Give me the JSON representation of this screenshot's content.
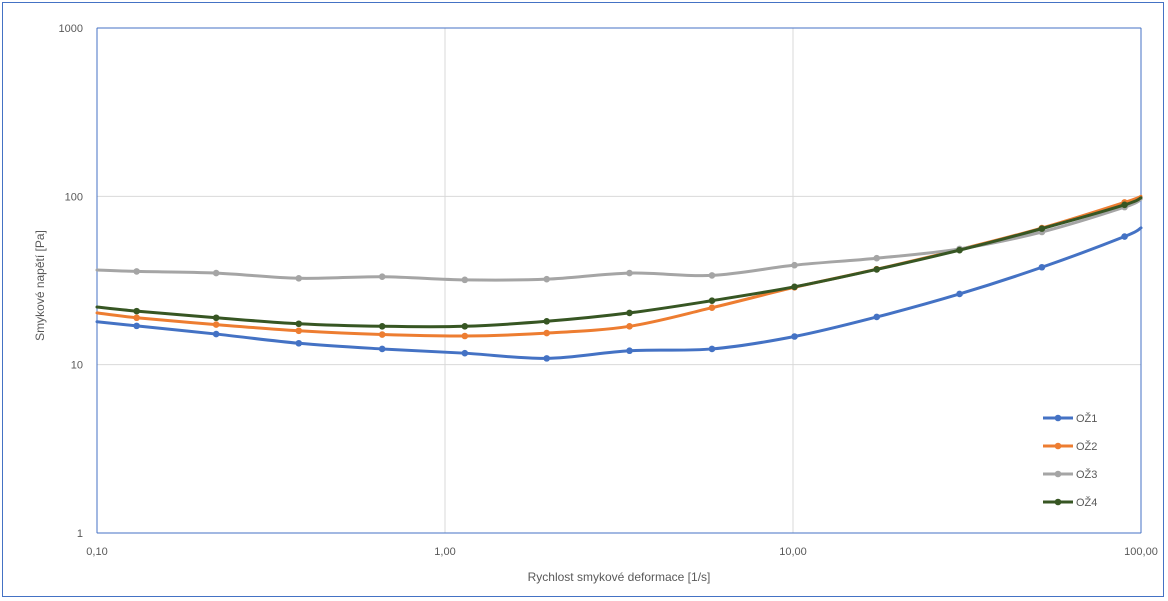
{
  "chart_data": {
    "type": "line",
    "title": "",
    "xlabel": "Rychlost smykové deformace [1/s]",
    "ylabel": "Smykové napětí [Pa]",
    "xscale": "log",
    "yscale": "log",
    "xlim": [
      0.1,
      100
    ],
    "ylim": [
      1,
      1000
    ],
    "xticks": [
      {
        "value": 0.1,
        "label": "0,10"
      },
      {
        "value": 1,
        "label": "1,00"
      },
      {
        "value": 10,
        "label": "10,00"
      },
      {
        "value": 100,
        "label": "100,00"
      }
    ],
    "yticks": [
      {
        "value": 1,
        "label": "1"
      },
      {
        "value": 10,
        "label": "10"
      },
      {
        "value": 100,
        "label": "100"
      },
      {
        "value": 1000,
        "label": "1000"
      }
    ],
    "grid": true,
    "legend": "right",
    "x": [
      0.1,
      0.13,
      0.22,
      0.38,
      0.66,
      1.14,
      1.96,
      3.39,
      5.85,
      10.1,
      17.4,
      30.1,
      51.9,
      89.7,
      100
    ],
    "series": [
      {
        "name": "OŽ1",
        "color": "#4472c4",
        "values": [
          18,
          17,
          15.2,
          13.4,
          12.4,
          11.7,
          10.9,
          12.1,
          12.4,
          14.7,
          19.2,
          26.3,
          37.9,
          57.7,
          65
        ]
      },
      {
        "name": "OŽ2",
        "color": "#ed7d31",
        "values": [
          20.3,
          19,
          17.3,
          15.9,
          15.1,
          14.8,
          15.4,
          16.9,
          21.8,
          28.8,
          36.9,
          48.3,
          64.8,
          92,
          100
        ]
      },
      {
        "name": "OŽ3",
        "color": "#a5a5a5",
        "values": [
          36.5,
          35.8,
          35,
          32.6,
          33.3,
          31.9,
          32.2,
          35,
          33.9,
          39,
          42.9,
          48.7,
          61.4,
          86.3,
          96
        ]
      },
      {
        "name": "OŽ4",
        "color": "#375623",
        "values": [
          22,
          20.8,
          19,
          17.5,
          16.9,
          16.9,
          18.1,
          20.3,
          24,
          29,
          36.8,
          47.9,
          64.3,
          89,
          98
        ]
      }
    ]
  }
}
